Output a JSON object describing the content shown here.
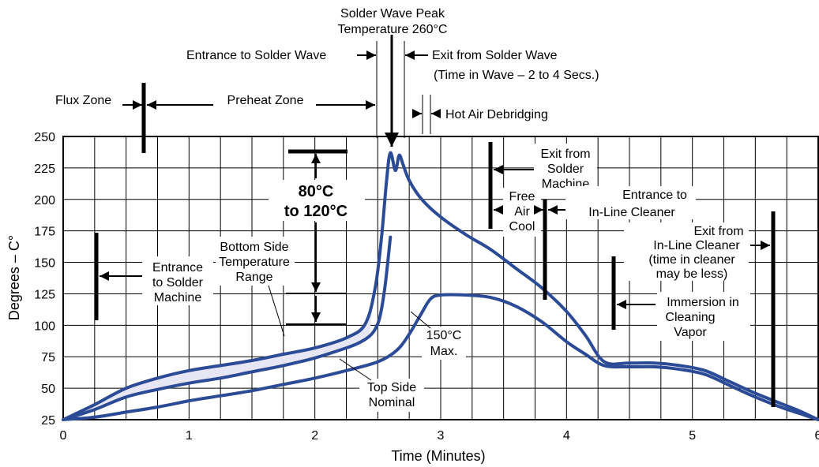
{
  "colors": {
    "curve": "#2c4b96",
    "band_fill": "#e6e6f5",
    "grid": "#000000"
  },
  "chart_data": {
    "type": "line",
    "title": "",
    "xlabel": "Time (Minutes)",
    "ylabel": "Degrees – C°",
    "xlim": [
      0,
      6
    ],
    "ylim": [
      25,
      250
    ],
    "x_ticks": [
      "0",
      "1",
      "2",
      "3",
      "4",
      "5",
      "6"
    ],
    "y_ticks": [
      "25",
      "50",
      "75",
      "100",
      "125",
      "150",
      "175",
      "200",
      "225",
      "250"
    ],
    "grid": true,
    "series": [
      {
        "name": "Bottom Side Temperature Range (upper)",
        "x": [
          0,
          0.25,
          0.5,
          0.75,
          1.0,
          1.25,
          1.5,
          1.75,
          2.0,
          2.25,
          2.4,
          2.48,
          2.53,
          2.57,
          2.6,
          2.64,
          2.67,
          2.7,
          2.75,
          2.85,
          3.0,
          3.2,
          3.4,
          3.6,
          3.8,
          4.0,
          4.15,
          4.3,
          4.5,
          4.7,
          4.9,
          5.1,
          5.3,
          5.5,
          5.7,
          5.85,
          6.0
        ],
        "y": [
          25,
          37,
          50,
          58,
          64,
          68,
          72,
          77,
          82,
          90,
          101,
          130,
          170,
          215,
          237,
          223,
          235,
          228,
          215,
          200,
          186,
          172,
          160,
          145,
          130,
          111,
          92,
          71,
          70,
          70,
          68,
          64,
          55,
          46,
          38,
          32,
          25
        ]
      },
      {
        "name": "Bottom Side Temperature Range (lower)",
        "x": [
          0,
          0.25,
          0.5,
          0.75,
          1.0,
          1.25,
          1.5,
          1.75,
          2.0,
          2.25,
          2.35,
          2.43,
          2.48,
          2.52,
          2.56,
          2.6
        ],
        "y": [
          25,
          33,
          43,
          49,
          54,
          58,
          63,
          68,
          74,
          82,
          86,
          91,
          97,
          108,
          133,
          170
        ]
      },
      {
        "name": "Top Side Nominal",
        "x": [
          0,
          0.25,
          0.5,
          0.75,
          1.0,
          1.25,
          1.5,
          1.75,
          2.0,
          2.25,
          2.5,
          2.65,
          2.75,
          2.85,
          2.92,
          3.0,
          3.2,
          3.4,
          3.6,
          3.8,
          4.0,
          4.15,
          4.3,
          4.5,
          4.7,
          4.9,
          5.1,
          5.3,
          5.5,
          5.7,
          5.85,
          6.0
        ],
        "y": [
          25,
          27,
          31,
          35,
          40,
          44,
          48,
          53,
          58,
          64,
          71,
          80,
          93,
          110,
          121,
          124,
          124,
          122,
          115,
          103,
          87,
          77,
          68,
          67,
          67,
          65,
          61,
          52,
          43,
          35,
          30,
          25
        ]
      }
    ],
    "annotations": {
      "solder_wave_peak": "Solder Wave Peak",
      "peak_temp": "Temperature 260°C",
      "entrance_wave": "Entrance to Solder Wave",
      "exit_wave": "Exit from Solder Wave",
      "time_in_wave": "(Time in Wave – 2 to 4 Secs.)",
      "flux_zone": "Flux Zone",
      "preheat_zone": "Preheat Zone",
      "hot_air": "Hot Air Debridging",
      "range_line1": "80°C",
      "range_line2": "to 120°C",
      "entrance_machine_1": "Entrance",
      "entrance_machine_2": "to Solder",
      "entrance_machine_3": "Machine",
      "bottom_range_1": "Bottom Side",
      "bottom_range_2": "Temperature",
      "bottom_range_3": "Range",
      "top_nominal_1": "Top Side",
      "top_nominal_2": "Nominal",
      "max_1": "150°C",
      "max_2": "Max.",
      "exit_machine_1": "Exit from",
      "exit_machine_2": "Solder",
      "exit_machine_3": "Machine",
      "free_air_1": "Free",
      "free_air_2": "Air",
      "free_air_3": "Cool",
      "entrance_cleaner_1": "Entrance to",
      "entrance_cleaner_2": "In-Line Cleaner",
      "exit_cleaner_1": "Exit from",
      "exit_cleaner_2": "In-Line Cleaner",
      "exit_cleaner_3": "(time in cleaner",
      "exit_cleaner_4": "may be less)",
      "immersion_1": "Immersion in",
      "immersion_2": "Cleaning",
      "immersion_3": "Vapor"
    }
  }
}
